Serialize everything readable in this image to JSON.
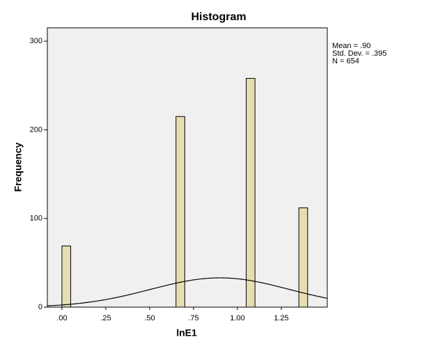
{
  "chart_data": {
    "type": "histogram",
    "title": "Histogram",
    "x_label": "lnE1",
    "y_label": "Frequency",
    "bins": [
      0,
      0.05,
      0.1,
      0.15,
      0.2,
      0.25,
      0.3,
      0.35,
      0.4,
      0.45,
      0.5,
      0.55,
      0.6,
      0.65,
      0.7,
      0.75,
      0.8,
      0.85,
      0.9,
      0.95,
      1.0,
      1.05,
      1.1,
      1.15,
      1.2,
      1.25,
      1.3,
      1.35,
      1.4,
      1.45
    ],
    "values": [
      69,
      0,
      0,
      0,
      0,
      0,
      0,
      0,
      0,
      0,
      0,
      0,
      0,
      215,
      0,
      0,
      0,
      0,
      0,
      0,
      0,
      258,
      0,
      0,
      0,
      0,
      0,
      112,
      0
    ],
    "color": "#e6ddb1",
    "xlim": [
      -0.083,
      1.512
    ],
    "ylim": [
      0,
      315
    ],
    "xticks": [
      {
        "value": 0,
        "label": ".00"
      },
      {
        "value": 0.25,
        "label": ".25"
      },
      {
        "value": 0.5,
        "label": ".50"
      },
      {
        "value": 0.75,
        "label": ".75"
      },
      {
        "value": 1.0,
        "label": "1.00"
      },
      {
        "value": 1.25,
        "label": "1.25"
      }
    ],
    "yticks": [
      0,
      100,
      200,
      300
    ],
    "stats": [
      {
        "value": 0.9,
        "label": "Mean = .90"
      },
      {
        "value": 0.395,
        "label": "Std. Dev. = .395"
      },
      {
        "value": 654,
        "label": "N = 654"
      }
    ]
  }
}
